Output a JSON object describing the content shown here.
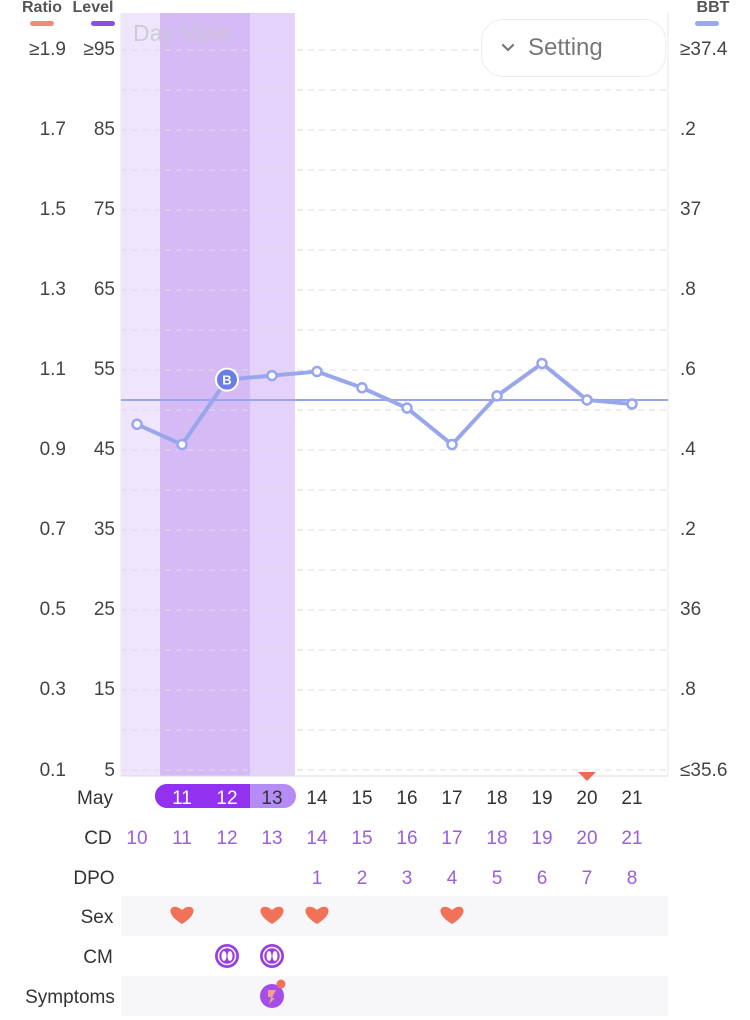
{
  "header": {
    "ratio_label": "Ratio",
    "level_label": "Level",
    "bbt_label": "BBT",
    "day_view": "Day View",
    "setting_label": "Setting"
  },
  "colors": {
    "ratio": "#f08b7a",
    "level": "#8a4fe8",
    "bbt": "#9aa9ec",
    "line": "#98a6ec",
    "accent_purple": "#9c58f0",
    "heart": "#f07259"
  },
  "chart_data": {
    "type": "line",
    "month_label": "May",
    "x": [
      "10",
      "11",
      "12",
      "13",
      "14",
      "15",
      "16",
      "17",
      "18",
      "19",
      "20",
      "21"
    ],
    "left_ratio_ticks": [
      "≥1.9",
      "1.7",
      "1.5",
      "1.3",
      "1.1",
      "0.9",
      "0.7",
      "0.5",
      "0.3",
      "0.1"
    ],
    "left_level_ticks": [
      "≥95",
      "85",
      "75",
      "65",
      "55",
      "45",
      "35",
      "25",
      "15",
      "5"
    ],
    "right_bbt_ticks": [
      "≥37.4",
      ".2",
      "37",
      ".8",
      ".6",
      ".4",
      ".2",
      "36",
      ".8",
      "≤35.6"
    ],
    "bbt_range": [
      35.6,
      37.4
    ],
    "series": [
      {
        "values": [
          36.45,
          36.4,
          36.56,
          36.57,
          36.58,
          36.54,
          36.49,
          36.4,
          36.52,
          36.6,
          36.51,
          36.5
        ]
      }
    ],
    "coverline": 36.51,
    "marker_label": "B",
    "marker_index": 2,
    "highlight_days": [
      "10",
      "11",
      "12"
    ],
    "today_index": 10,
    "grid": true
  },
  "rows": {
    "cd": {
      "label": "CD",
      "values": [
        "10",
        "11",
        "12",
        "13",
        "14",
        "15",
        "16",
        "17",
        "18",
        "19",
        "20",
        "21"
      ]
    },
    "dpo": {
      "label": "DPO",
      "values": [
        "",
        "",
        "",
        "",
        "1",
        "2",
        "3",
        "4",
        "5",
        "6",
        "7",
        "8"
      ]
    },
    "sex": {
      "label": "Sex",
      "days": [
        1,
        3,
        4,
        7
      ]
    },
    "cm": {
      "label": "CM",
      "days": [
        2,
        3
      ]
    },
    "symptoms": {
      "label": "Symptoms",
      "days": [
        3
      ]
    }
  }
}
